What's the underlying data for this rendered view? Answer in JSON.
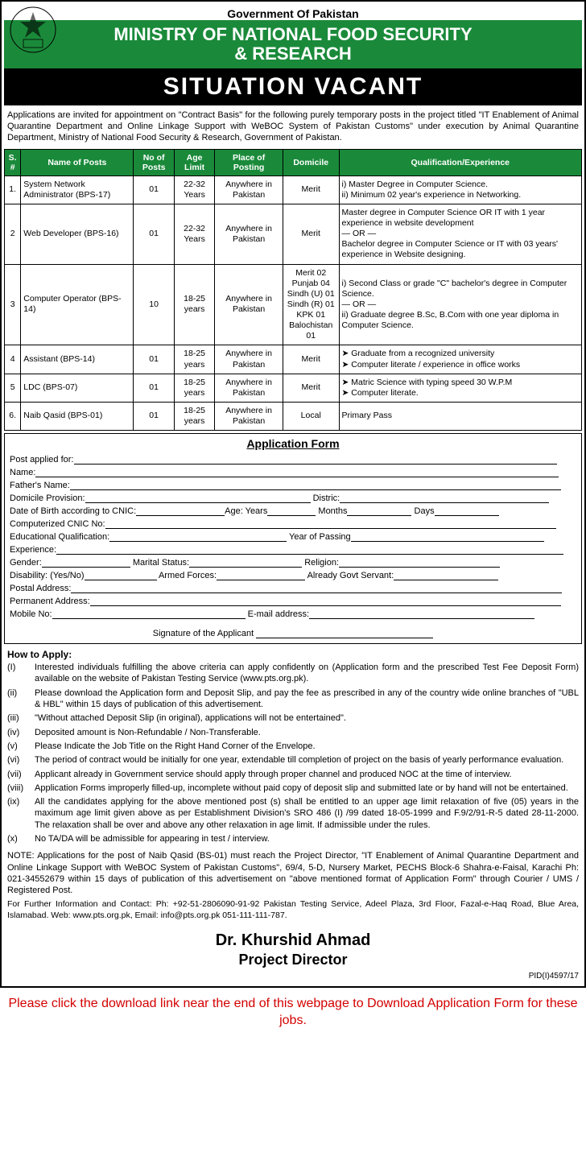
{
  "header": {
    "gov": "Government Of Pakistan",
    "ministry_l1": "MINISTRY OF NATIONAL FOOD SECURITY",
    "ministry_l2": "& RESEARCH",
    "situation": "SITUATION VACANT"
  },
  "intro": "Applications are invited for appointment on \"Contract Basis\" for the following purely temporary posts in the project titled \"IT Enablement of Animal Quarantine Department and Online Linkage Support with WeBOC System of Pakistan Customs\" under execution by Animal Quarantine Department, Ministry of National Food Security & Research, Government of Pakistan.",
  "table": {
    "columns": [
      "S. #",
      "Name of Posts",
      "No of Posts",
      "Age Limit",
      "Place of Posting",
      "Domicile",
      "Qualification/Experience"
    ],
    "rows": [
      {
        "sn": "1.",
        "name": "System Network Administrator (BPS-17)",
        "no": "01",
        "age": "22-32 Years",
        "place": "Anywhere in Pakistan",
        "dom": "Merit",
        "qual": "i)   Master Degree in Computer Science.\nii)  Minimum 02 year's experience in Networking."
      },
      {
        "sn": "2",
        "name": "Web Developer (BPS-16)",
        "no": "01",
        "age": "22-32 Years",
        "place": "Anywhere in Pakistan",
        "dom": "Merit",
        "qual": "Master degree in Computer Science OR IT with 1 year experience in website development\n— OR —\nBachelor degree in Computer Science or IT with 03 years' experience in Website designing."
      },
      {
        "sn": "3",
        "name": "Computer Operator (BPS-14)",
        "no": "10",
        "age": "18-25 years",
        "place": "Anywhere in Pakistan",
        "dom": "Merit 02\nPunjab 04\nSindh (U) 01\nSindh (R) 01\nKPK 01\nBalochistan 01",
        "qual": "i)   Second Class or grade \"C\" bachelor's degree in Computer Science.\n— OR —\nii)  Graduate degree B.Sc, B.Com with one year diploma in Computer Science."
      },
      {
        "sn": "4",
        "name": "Assistant (BPS-14)",
        "no": "01",
        "age": "18-25 years",
        "place": "Anywhere in Pakistan",
        "dom": "Merit",
        "qual": "➤ Graduate from a recognized university\n➤ Computer literate / experience in office works"
      },
      {
        "sn": "5",
        "name": "LDC (BPS-07)",
        "no": "01",
        "age": "18-25 years",
        "place": "Anywhere in Pakistan",
        "dom": "Merit",
        "qual": "➤ Matric Science with typing speed 30 W.P.M\n➤ Computer literate."
      },
      {
        "sn": "6.",
        "name": "Naib Qasid (BPS-01)",
        "no": "01",
        "age": "18-25 years",
        "place": "Anywhere in Pakistan",
        "dom": "Local",
        "qual": "Primary Pass"
      }
    ]
  },
  "appform": {
    "title": "Application Form",
    "labels": {
      "post": "Post applied for:",
      "name": "Name:",
      "father": "Father's Name:",
      "domicile": "Domicile Provision:",
      "district": "Distric:",
      "dob": "Date of Birth according to CNIC:",
      "age": "Age: Years",
      "months": "Months",
      "days": "Days",
      "cnic": "Computerized CNIC No:",
      "edu": "Educational Qualification:",
      "yop": "Year of Passing",
      "exp": "Experience:",
      "gender": "Gender:",
      "marital": "Marital Status:",
      "religion": "Religion:",
      "disability": "Disability: (Yes/No)",
      "armed": "Armed Forces:",
      "govt": "Already Govt Servant:",
      "postal": "Postal Address:",
      "permanent": "Permanent Address:",
      "mobile": "Mobile No:",
      "email": "E-mail address:",
      "signature": "Signature of the Applicant"
    }
  },
  "howto": {
    "title": "How to Apply:",
    "items": [
      {
        "n": "(I)",
        "t": "Interested individuals fulfilling the above criteria can apply confidently on (Application form and the prescribed Test Fee Deposit Form) available on the website of Pakistan Testing Service (www.pts.org.pk)."
      },
      {
        "n": "(ii)",
        "t": "Please download the Application form and Deposit Slip, and pay the fee as prescribed in any of the country wide online branches of \"UBL & HBL\" within 15 days of publication of this advertisement."
      },
      {
        "n": "(iii)",
        "t": "\"Without attached Deposit Slip (in original), applications will not be entertained\"."
      },
      {
        "n": "(iv)",
        "t": "Deposited amount is Non-Refundable / Non-Transferable."
      },
      {
        "n": "(v)",
        "t": "Please Indicate the Job Title on the Right Hand Corner of the Envelope."
      },
      {
        "n": "(vi)",
        "t": "The period of contract would be initially for one year, extendable till completion of project on the basis of yearly performance evaluation."
      },
      {
        "n": "(vii)",
        "t": "Applicant already in Government service should apply through proper channel and produced NOC at the time of interview."
      },
      {
        "n": "(viii)",
        "t": "Application Forms improperly filled-up, incomplete without paid copy of deposit slip and submitted late or by hand will not be entertained."
      },
      {
        "n": "(ix)",
        "t": "All the candidates applying for the above mentioned post (s) shall be entitled to an upper age limit relaxation of five (05) years in the maximum age limit given above as per Establishment Division's SRO 486 (I) /99 dated 18-05-1999 and F.9/2/91-R-5 dated 28-11-2000. The relaxation shall be over and above any other relaxation in age limit. If admissible under the rules."
      },
      {
        "n": "(x)",
        "t": "No TA/DA will be admissible for appearing in test / interview."
      }
    ]
  },
  "note": "NOTE: Applications for the post of Naib Qasid (BS-01) must reach the Project Director, \"IT Enablement of Animal Quarantine Department and Online Linkage Support with WeBOC System of Pakistan Customs\", 69/4, 5-D, Nursery Market, PECHS Block-6 Shahra-e-Faisal, Karachi Ph: 021-34552679 within 15 days of publication of this advertisement on \"above mentioned format of Application Form\" through Courier / UMS / Registered Post.",
  "contact": "For Further Information and Contact: Ph: +92-51-2806090-91-92 Pakistan Testing Service, Adeel Plaza, 3rd Floor, Fazal-e-Haq Road, Blue Area, Islamabad. Web: www.pts.org.pk, Email: info@pts.org.pk 051-111-111-787.",
  "signature": {
    "name": "Dr. Khurshid Ahmad",
    "title": "Project Director"
  },
  "pid": "PID(I)4597/17",
  "download": "Please click the download link near the end of this webpage to Download Application Form for these jobs.",
  "colors": {
    "green": "#1a8a3a",
    "black": "#000000",
    "red": "#d40000"
  }
}
